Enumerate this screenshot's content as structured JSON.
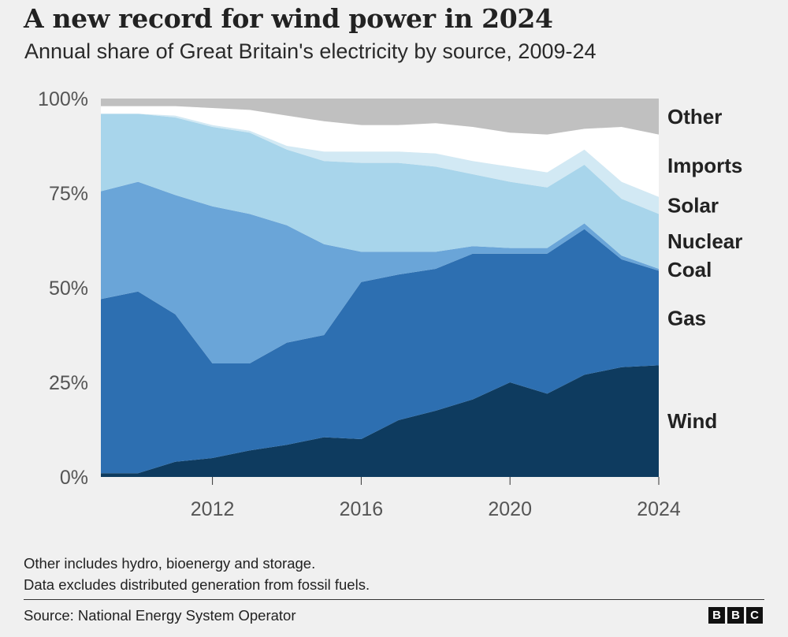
{
  "header": {
    "title": "A new record for wind power in 2024",
    "subtitle": "Annual share of Great Britain's electricity by source, 2009-24"
  },
  "chart_data": {
    "type": "area",
    "stacked": true,
    "title": "A new record for wind power in 2024",
    "subtitle": "Annual share of Great Britain's electricity by source, 2009-24",
    "x": [
      2009,
      2010,
      2011,
      2012,
      2013,
      2014,
      2015,
      2016,
      2017,
      2018,
      2019,
      2020,
      2021,
      2022,
      2023,
      2024
    ],
    "xlim": [
      2009,
      2024
    ],
    "xticks": [
      2012,
      2016,
      2020,
      2024
    ],
    "xtick_labels": [
      "2012",
      "2016",
      "2020",
      "2024"
    ],
    "ylim": [
      0,
      100
    ],
    "yticks": [
      0,
      25,
      50,
      75,
      100
    ],
    "ytick_labels": [
      "0%",
      "25%",
      "50%",
      "75%",
      "100%"
    ],
    "grid": false,
    "legend_position": "right, inline labels",
    "series": [
      {
        "name": "Wind",
        "color": "#0e3b5f",
        "values": [
          1,
          1,
          4,
          5,
          7,
          8.5,
          10.5,
          10,
          15,
          17.5,
          20.5,
          25,
          22,
          27,
          29,
          29.5
        ]
      },
      {
        "name": "Gas",
        "color": "#2d6fb1",
        "values": [
          46,
          48,
          39,
          25,
          23,
          27,
          27,
          41.5,
          38.5,
          37.5,
          38.5,
          34,
          37,
          38.5,
          28.5,
          25
        ]
      },
      {
        "name": "Coal",
        "color": "#6aa5d8",
        "values": [
          28.5,
          29,
          31.5,
          41.5,
          39.5,
          31,
          24,
          8,
          6,
          4.5,
          2,
          1.5,
          1.5,
          1.5,
          1,
          0.5
        ]
      },
      {
        "name": "Nuclear",
        "color": "#a8d5eb",
        "values": [
          20.5,
          18,
          20.5,
          21,
          21.5,
          20,
          22,
          23.5,
          23.5,
          22.5,
          19,
          17.5,
          16,
          15.5,
          15,
          14.5
        ]
      },
      {
        "name": "Solar",
        "color": "#d2e9f4",
        "values": [
          0,
          0,
          0.5,
          0.5,
          0.5,
          1,
          2.5,
          3,
          3,
          3.5,
          3.5,
          4,
          4,
          4,
          4.5,
          4.5
        ]
      },
      {
        "name": "Imports",
        "color": "#ffffff",
        "values": [
          2,
          2,
          2.5,
          4.5,
          5.5,
          8,
          8,
          7,
          7,
          8,
          9,
          9,
          10,
          5.5,
          14.5,
          16.5
        ]
      },
      {
        "name": "Other",
        "color": "#c0c0c0",
        "values": [
          2,
          2,
          2,
          2.5,
          3,
          4.5,
          6,
          7,
          7,
          6.5,
          7.5,
          9,
          9.5,
          8,
          7.5,
          9.5
        ]
      }
    ]
  },
  "notes": {
    "line1": "Other includes hydro, bioenergy and storage.",
    "line2": "Data excludes distributed generation from fossil fuels."
  },
  "footer": {
    "source": "Source: National Energy System Operator",
    "logo_letters": [
      "B",
      "B",
      "C"
    ]
  }
}
